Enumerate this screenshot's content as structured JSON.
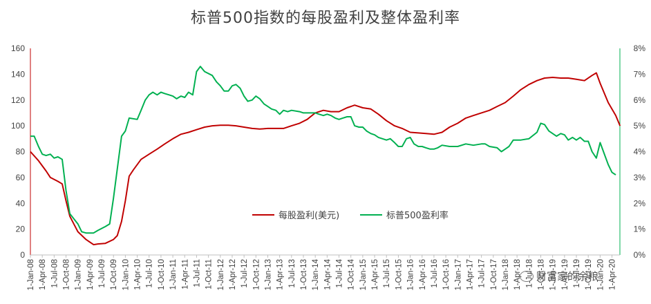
{
  "chart_data": {
    "type": "line",
    "title": "标普500指数的每股盈利及整体盈利率",
    "left_axis": {
      "ylim": [
        0,
        160
      ],
      "ticks": [
        "0",
        "20",
        "40",
        "60",
        "80",
        "100",
        "120",
        "140",
        "160"
      ]
    },
    "right_axis": {
      "ylim": [
        0,
        8
      ],
      "ticks": [
        "0%",
        "1%",
        "2%",
        "3%",
        "4%",
        "5%",
        "6%",
        "7%",
        "8%"
      ]
    },
    "x_range": [
      2008.0,
      2020.4167
    ],
    "x_tick_labels": [
      "1-Jan-08",
      "1-Apr-08",
      "1-Jul-08",
      "1-Oct-08",
      "1-Jan-09",
      "1-Apr-09",
      "1-Jul-09",
      "1-Oct-09",
      "1-Jan-10",
      "1-Apr-10",
      "1-Jul-10",
      "1-Oct-10",
      "1-Jan-11",
      "1-Apr-11",
      "1-Jul-11",
      "1-Oct-11",
      "1-Jan-12",
      "1-Apr-12",
      "1-Jul-12",
      "1-Oct-12",
      "1-Jan-13",
      "1-Apr-13",
      "1-Jul-13",
      "1-Oct-13",
      "1-Jan-14",
      "1-Apr-14",
      "1-Jul-14",
      "1-Oct-14",
      "1-Jan-15",
      "1-Apr-15",
      "1-Jul-15",
      "1-Oct-15",
      "1-Jan-16",
      "1-Apr-16",
      "1-Jul-16",
      "1-Oct-16",
      "1-Jan-17",
      "1-Apr-17",
      "1-Jul-17",
      "1-Oct-17",
      "1-Jan-18",
      "1-Apr-18",
      "1-Jul-18",
      "1-Oct-18",
      "1-Jan-19",
      "1-Apr-19",
      "1-Jul-19",
      "1-Oct-19",
      "1-Jan-20",
      "1-Apr-20"
    ],
    "legend_position": "center",
    "grid": false,
    "series": [
      {
        "name": "每股盈利(美元)",
        "axis": "left",
        "color": "#c00000",
        "points": [
          [
            2008.0,
            80
          ],
          [
            2008.17,
            73
          ],
          [
            2008.33,
            65
          ],
          [
            2008.42,
            60
          ],
          [
            2008.58,
            57
          ],
          [
            2008.67,
            55
          ],
          [
            2008.75,
            42
          ],
          [
            2008.83,
            30
          ],
          [
            2009.0,
            18
          ],
          [
            2009.17,
            12
          ],
          [
            2009.33,
            8
          ],
          [
            2009.42,
            8.5
          ],
          [
            2009.58,
            9
          ],
          [
            2009.75,
            12
          ],
          [
            2009.83,
            15
          ],
          [
            2009.92,
            26
          ],
          [
            2010.0,
            42
          ],
          [
            2010.08,
            61
          ],
          [
            2010.17,
            66
          ],
          [
            2010.33,
            74
          ],
          [
            2010.5,
            78
          ],
          [
            2010.67,
            82
          ],
          [
            2010.83,
            86
          ],
          [
            2011.0,
            90
          ],
          [
            2011.17,
            93.5
          ],
          [
            2011.33,
            95
          ],
          [
            2011.5,
            97
          ],
          [
            2011.67,
            99
          ],
          [
            2011.83,
            100
          ],
          [
            2012.0,
            100.5
          ],
          [
            2012.17,
            100.5
          ],
          [
            2012.33,
            100
          ],
          [
            2012.5,
            99
          ],
          [
            2012.67,
            98
          ],
          [
            2012.83,
            97.5
          ],
          [
            2013.0,
            98
          ],
          [
            2013.17,
            98
          ],
          [
            2013.33,
            98
          ],
          [
            2013.5,
            100
          ],
          [
            2013.67,
            102
          ],
          [
            2013.83,
            105
          ],
          [
            2014.0,
            110
          ],
          [
            2014.17,
            112
          ],
          [
            2014.33,
            111
          ],
          [
            2014.5,
            111
          ],
          [
            2014.67,
            114
          ],
          [
            2014.83,
            116
          ],
          [
            2015.0,
            114
          ],
          [
            2015.17,
            113
          ],
          [
            2015.33,
            109
          ],
          [
            2015.5,
            104
          ],
          [
            2015.67,
            100
          ],
          [
            2015.83,
            98
          ],
          [
            2016.0,
            95
          ],
          [
            2016.17,
            94.5
          ],
          [
            2016.33,
            94
          ],
          [
            2016.5,
            93.5
          ],
          [
            2016.67,
            95
          ],
          [
            2016.83,
            99
          ],
          [
            2017.0,
            102
          ],
          [
            2017.17,
            106
          ],
          [
            2017.33,
            108
          ],
          [
            2017.5,
            110
          ],
          [
            2017.67,
            112
          ],
          [
            2017.83,
            115
          ],
          [
            2018.0,
            118
          ],
          [
            2018.17,
            123
          ],
          [
            2018.33,
            128
          ],
          [
            2018.5,
            132
          ],
          [
            2018.67,
            135
          ],
          [
            2018.83,
            137
          ],
          [
            2019.0,
            137.5
          ],
          [
            2019.17,
            137
          ],
          [
            2019.33,
            137
          ],
          [
            2019.5,
            136
          ],
          [
            2019.67,
            135
          ],
          [
            2019.83,
            139
          ],
          [
            2019.92,
            141
          ],
          [
            2020.0,
            133
          ],
          [
            2020.17,
            118
          ],
          [
            2020.33,
            108
          ],
          [
            2020.42,
            100
          ]
        ]
      },
      {
        "name": "标普500盈利率",
        "axis": "right",
        "color": "#00b050",
        "points": [
          [
            2008.0,
            4.6
          ],
          [
            2008.08,
            4.6
          ],
          [
            2008.17,
            4.2
          ],
          [
            2008.25,
            3.9
          ],
          [
            2008.33,
            3.85
          ],
          [
            2008.42,
            3.9
          ],
          [
            2008.5,
            3.75
          ],
          [
            2008.58,
            3.8
          ],
          [
            2008.67,
            3.7
          ],
          [
            2008.75,
            2.5
          ],
          [
            2008.83,
            1.6
          ],
          [
            2009.0,
            1.2
          ],
          [
            2009.08,
            0.9
          ],
          [
            2009.17,
            0.85
          ],
          [
            2009.33,
            0.85
          ],
          [
            2009.42,
            0.95
          ],
          [
            2009.58,
            1.1
          ],
          [
            2009.67,
            1.2
          ],
          [
            2009.75,
            2.2
          ],
          [
            2009.92,
            4.6
          ],
          [
            2010.0,
            4.8
          ],
          [
            2010.08,
            5.3
          ],
          [
            2010.25,
            5.25
          ],
          [
            2010.33,
            5.6
          ],
          [
            2010.42,
            6.0
          ],
          [
            2010.5,
            6.2
          ],
          [
            2010.58,
            6.3
          ],
          [
            2010.67,
            6.2
          ],
          [
            2010.75,
            6.3
          ],
          [
            2010.83,
            6.25
          ],
          [
            2010.92,
            6.2
          ],
          [
            2011.0,
            6.15
          ],
          [
            2011.08,
            6.05
          ],
          [
            2011.17,
            6.15
          ],
          [
            2011.25,
            6.1
          ],
          [
            2011.33,
            6.3
          ],
          [
            2011.42,
            6.2
          ],
          [
            2011.5,
            7.1
          ],
          [
            2011.58,
            7.3
          ],
          [
            2011.67,
            7.1
          ],
          [
            2011.83,
            6.95
          ],
          [
            2011.92,
            6.7
          ],
          [
            2012.0,
            6.55
          ],
          [
            2012.08,
            6.35
          ],
          [
            2012.17,
            6.35
          ],
          [
            2012.25,
            6.55
          ],
          [
            2012.33,
            6.6
          ],
          [
            2012.42,
            6.45
          ],
          [
            2012.5,
            6.15
          ],
          [
            2012.58,
            5.95
          ],
          [
            2012.67,
            6.0
          ],
          [
            2012.75,
            6.15
          ],
          [
            2012.83,
            6.05
          ],
          [
            2012.92,
            5.85
          ],
          [
            2013.0,
            5.75
          ],
          [
            2013.08,
            5.65
          ],
          [
            2013.17,
            5.6
          ],
          [
            2013.25,
            5.45
          ],
          [
            2013.33,
            5.6
          ],
          [
            2013.42,
            5.55
          ],
          [
            2013.5,
            5.6
          ],
          [
            2013.67,
            5.55
          ],
          [
            2013.75,
            5.5
          ],
          [
            2013.83,
            5.5
          ],
          [
            2014.0,
            5.5
          ],
          [
            2014.08,
            5.45
          ],
          [
            2014.17,
            5.4
          ],
          [
            2014.25,
            5.45
          ],
          [
            2014.33,
            5.4
          ],
          [
            2014.42,
            5.3
          ],
          [
            2014.5,
            5.25
          ],
          [
            2014.58,
            5.3
          ],
          [
            2014.67,
            5.35
          ],
          [
            2014.75,
            5.35
          ],
          [
            2014.83,
            5.0
          ],
          [
            2014.92,
            4.95
          ],
          [
            2015.0,
            4.95
          ],
          [
            2015.08,
            4.8
          ],
          [
            2015.17,
            4.7
          ],
          [
            2015.25,
            4.65
          ],
          [
            2015.33,
            4.55
          ],
          [
            2015.5,
            4.45
          ],
          [
            2015.58,
            4.5
          ],
          [
            2015.67,
            4.35
          ],
          [
            2015.75,
            4.2
          ],
          [
            2015.83,
            4.2
          ],
          [
            2015.92,
            4.5
          ],
          [
            2016.0,
            4.55
          ],
          [
            2016.08,
            4.3
          ],
          [
            2016.17,
            4.2
          ],
          [
            2016.25,
            4.2
          ],
          [
            2016.33,
            4.15
          ],
          [
            2016.42,
            4.1
          ],
          [
            2016.5,
            4.1
          ],
          [
            2016.58,
            4.15
          ],
          [
            2016.67,
            4.25
          ],
          [
            2016.83,
            4.2
          ],
          [
            2017.0,
            4.2
          ],
          [
            2017.17,
            4.3
          ],
          [
            2017.33,
            4.25
          ],
          [
            2017.5,
            4.3
          ],
          [
            2017.58,
            4.3
          ],
          [
            2017.67,
            4.2
          ],
          [
            2017.83,
            4.15
          ],
          [
            2017.92,
            4.0
          ],
          [
            2018.0,
            4.1
          ],
          [
            2018.08,
            4.2
          ],
          [
            2018.17,
            4.45
          ],
          [
            2018.33,
            4.45
          ],
          [
            2018.5,
            4.5
          ],
          [
            2018.67,
            4.75
          ],
          [
            2018.75,
            5.1
          ],
          [
            2018.83,
            5.05
          ],
          [
            2018.92,
            4.8
          ],
          [
            2019.0,
            4.7
          ],
          [
            2019.08,
            4.6
          ],
          [
            2019.17,
            4.7
          ],
          [
            2019.25,
            4.65
          ],
          [
            2019.33,
            4.45
          ],
          [
            2019.42,
            4.55
          ],
          [
            2019.5,
            4.45
          ],
          [
            2019.58,
            4.55
          ],
          [
            2019.67,
            4.4
          ],
          [
            2019.75,
            4.4
          ],
          [
            2019.83,
            4.0
          ],
          [
            2019.92,
            3.75
          ],
          [
            2020.0,
            4.35
          ],
          [
            2020.08,
            3.95
          ],
          [
            2020.17,
            3.5
          ],
          [
            2020.25,
            3.2
          ],
          [
            2020.33,
            3.1
          ]
        ]
      }
    ]
  },
  "watermark": "财富家的余粮"
}
